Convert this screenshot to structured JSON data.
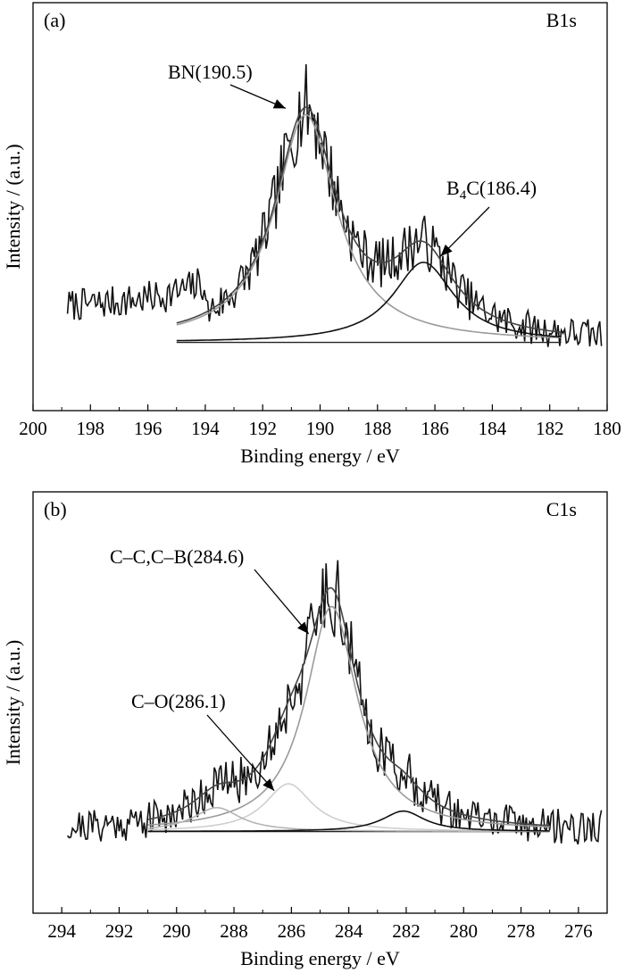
{
  "colors": {
    "raw": "#111111",
    "envelope": "#444444",
    "peak_main": "#9a9a9a",
    "peak_minor": "#c8c8c8",
    "peak_dark": "#111111",
    "baseline": "#222222"
  },
  "chart_data": [
    {
      "type": "line",
      "panel_label": "(a)",
      "title": "B1s",
      "xlabel": "Binding energy / eV",
      "ylabel": "Intensity / (a.u.)",
      "xlim": [
        200,
        180
      ],
      "ylim": [
        0,
        100
      ],
      "xticks": [
        200,
        198,
        196,
        194,
        192,
        190,
        188,
        186,
        184,
        182,
        180
      ],
      "raw_range": [
        198.8,
        180.2
      ],
      "fit_range": [
        195.0,
        181.6
      ],
      "noise_seed": 7,
      "baseline_level": 12,
      "peaks": [
        {
          "name": "BN",
          "center": 190.5,
          "height": 74,
          "width": 1.3,
          "color": "#9a9a9a"
        },
        {
          "name": "B4C",
          "center": 186.4,
          "height": 26,
          "width": 1.3,
          "color": "#111111"
        }
      ],
      "annotations": [
        {
          "text_main": "BN(190.5)",
          "sub": "",
          "text_after": "",
          "target_x": 191.2,
          "target_y": 88
        },
        {
          "text_main": "B",
          "sub": "4",
          "text_after": "C(186.4)",
          "target_x": 185.8,
          "target_y": 40
        }
      ],
      "series": [
        {
          "name": "Raw spectrum",
          "color": "#111111"
        },
        {
          "name": "Envelope",
          "color": "#444444"
        },
        {
          "name": "Baseline",
          "color": "#222222"
        }
      ]
    },
    {
      "type": "line",
      "panel_label": "(b)",
      "title": "C1s",
      "xlabel": "Binding energy / eV",
      "ylabel": "Intensity / (a.u.)",
      "xlim": [
        295,
        275
      ],
      "ylim": [
        0,
        100
      ],
      "xticks": [
        294,
        292,
        290,
        288,
        286,
        284,
        282,
        280,
        278,
        276
      ],
      "raw_range": [
        293.8,
        275.2
      ],
      "fit_range": [
        291.0,
        277.0
      ],
      "noise_seed": 21,
      "baseline_level": 14,
      "peaks": [
        {
          "name": "C-C,C-B",
          "center": 284.6,
          "height": 66,
          "width": 1.1,
          "color": "#9a9a9a"
        },
        {
          "name": "C-O",
          "center": 286.1,
          "height": 14,
          "width": 1.0,
          "color": "#cfcfcf"
        },
        {
          "name": "C=O",
          "center": 288.6,
          "height": 7,
          "width": 1.0,
          "color": "#b5b5b5"
        },
        {
          "name": "B-C",
          "center": 282.1,
          "height": 6,
          "width": 0.9,
          "color": "#111111"
        }
      ],
      "annotations": [
        {
          "text_main": "C–C,C–B(284.6)",
          "sub": "",
          "text_after": "",
          "target_x": 285.4,
          "target_y": 72
        },
        {
          "text_main": "C–O(286.1)",
          "sub": "",
          "text_after": "",
          "target_x": 286.6,
          "target_y": 26
        }
      ],
      "series": [
        {
          "name": "Raw spectrum",
          "color": "#111111"
        },
        {
          "name": "Envelope",
          "color": "#444444"
        },
        {
          "name": "Baseline",
          "color": "#222222"
        }
      ]
    }
  ]
}
